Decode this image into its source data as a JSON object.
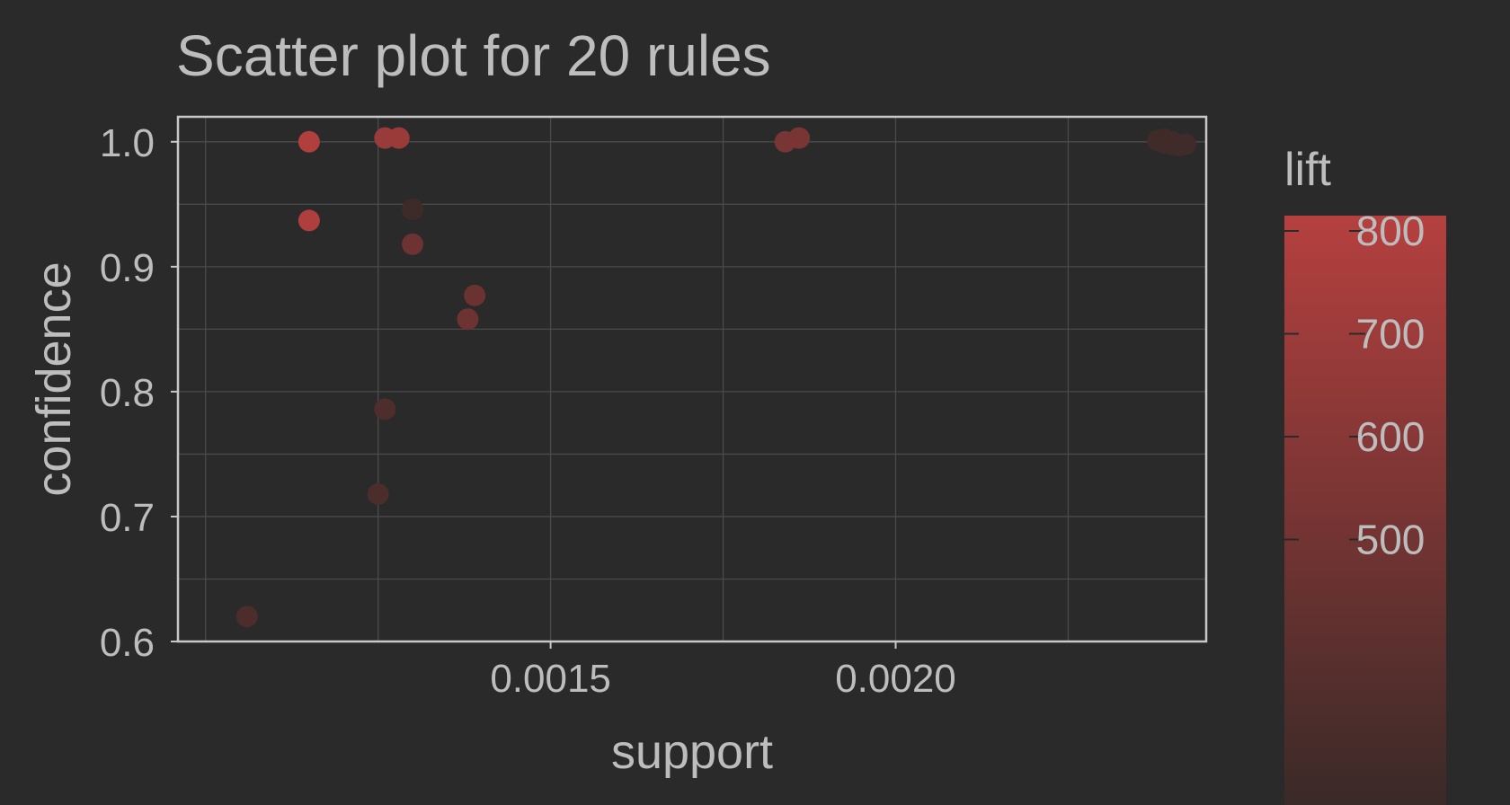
{
  "chart_data": {
    "type": "scatter",
    "title": "Scatter plot for 20 rules",
    "xlabel": "support",
    "ylabel": "confidence",
    "xlim": [
      0.00096,
      0.00245
    ],
    "ylim": [
      0.6,
      1.02
    ],
    "xticks": [
      {
        "value": 0.0015,
        "label": "0.0015"
      },
      {
        "value": 0.002,
        "label": "0.0020"
      }
    ],
    "yticks": [
      {
        "value": 0.6,
        "label": "0.6"
      },
      {
        "value": 0.7,
        "label": "0.7"
      },
      {
        "value": 0.8,
        "label": "0.8"
      },
      {
        "value": 0.9,
        "label": "0.9"
      },
      {
        "value": 1.0,
        "label": "1.0"
      }
    ],
    "grid": true,
    "legend": {
      "title": "lift",
      "position": "right",
      "min": 380,
      "max": 815,
      "ticks": [
        {
          "value": 800,
          "label": "800"
        },
        {
          "value": 700,
          "label": "700"
        },
        {
          "value": 600,
          "label": "600"
        },
        {
          "value": 500,
          "label": "500"
        }
      ],
      "low_color": "#3a2a28",
      "high_color": "#b5403f"
    },
    "colors": {
      "background": "#2a2a2a",
      "panel_border": "#c8c8c8",
      "grid": "#4a4a4a",
      "text": "#bdbdbd"
    },
    "points": [
      {
        "support": 0.00115,
        "confidence": 1.0,
        "lift": 800
      },
      {
        "support": 0.00115,
        "confidence": 0.937,
        "lift": 790
      },
      {
        "support": 0.00126,
        "confidence": 1.003,
        "lift": 715
      },
      {
        "support": 0.00128,
        "confidence": 1.003,
        "lift": 720
      },
      {
        "support": 0.0013,
        "confidence": 0.946,
        "lift": 390
      },
      {
        "support": 0.0013,
        "confidence": 0.918,
        "lift": 560
      },
      {
        "support": 0.00139,
        "confidence": 0.877,
        "lift": 550
      },
      {
        "support": 0.00138,
        "confidence": 0.858,
        "lift": 560
      },
      {
        "support": 0.00126,
        "confidence": 0.786,
        "lift": 450
      },
      {
        "support": 0.00125,
        "confidence": 0.718,
        "lift": 440
      },
      {
        "support": 0.00106,
        "confidence": 0.62,
        "lift": 445
      },
      {
        "support": 0.00184,
        "confidence": 1.0,
        "lift": 595
      },
      {
        "support": 0.00186,
        "confidence": 1.003,
        "lift": 600
      },
      {
        "support": 0.00238,
        "confidence": 1.001,
        "lift": 400
      },
      {
        "support": 0.00239,
        "confidence": 0.999,
        "lift": 400
      },
      {
        "support": 0.0024,
        "confidence": 0.998,
        "lift": 398
      },
      {
        "support": 0.00241,
        "confidence": 0.997,
        "lift": 398
      },
      {
        "support": 0.0024,
        "confidence": 1.0,
        "lift": 402
      },
      {
        "support": 0.00242,
        "confidence": 0.998,
        "lift": 399
      },
      {
        "support": 0.00239,
        "confidence": 1.002,
        "lift": 401
      }
    ]
  }
}
